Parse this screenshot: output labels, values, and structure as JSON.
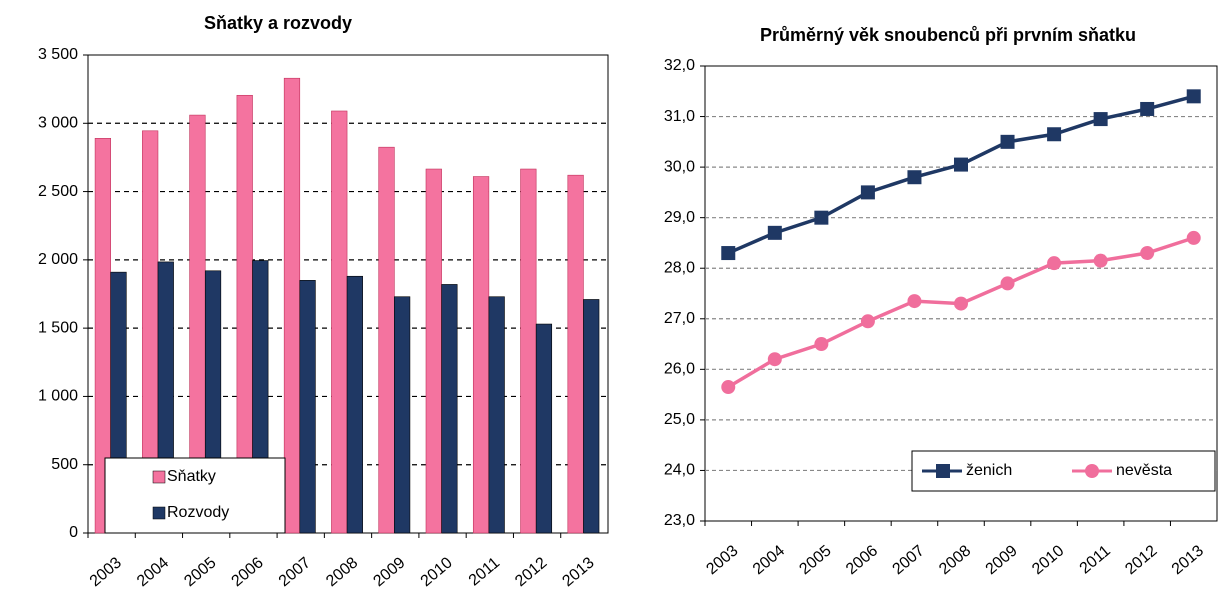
{
  "chart_data": [
    {
      "type": "bar",
      "title": "Sňatky a rozvody",
      "categories": [
        "2003",
        "2004",
        "2005",
        "2006",
        "2007",
        "2008",
        "2009",
        "2010",
        "2011",
        "2012",
        "2013"
      ],
      "series": [
        {
          "name": "Sňatky",
          "color": "#f4739f",
          "values": [
            2890,
            2945,
            3060,
            3205,
            3330,
            3090,
            2825,
            2665,
            2610,
            2665,
            2620
          ]
        },
        {
          "name": "Rozvody",
          "color": "#1f3864",
          "values": [
            1910,
            1985,
            1920,
            1995,
            1850,
            1880,
            1730,
            1820,
            1730,
            1530,
            1710
          ]
        }
      ],
      "ylim": [
        0,
        3500
      ],
      "yticks": [
        0,
        500,
        {
          "value": 1000,
          "label": "1 000"
        },
        {
          "value": 1500,
          "label": "1 500"
        },
        {
          "value": 2000,
          "label": "2 000"
        },
        {
          "value": 2500,
          "label": "2 500"
        },
        {
          "value": 3000,
          "label": "3 000"
        },
        {
          "value": 3500,
          "label": "3 500"
        }
      ],
      "grid": true,
      "legend": "lower left"
    },
    {
      "type": "line",
      "title": "Průměrný věk snoubenců při prvním sňatku",
      "categories": [
        "2003",
        "2004",
        "2005",
        "2006",
        "2007",
        "2008",
        "2009",
        "2010",
        "2011",
        "2012",
        "2013"
      ],
      "series": [
        {
          "name": "ženich",
          "color": "#1f3864",
          "values": [
            28.3,
            28.7,
            29.0,
            29.5,
            29.8,
            30.05,
            30.5,
            30.65,
            30.95,
            31.15,
            31.4
          ]
        },
        {
          "name": "nevěsta",
          "color": "#f06e9c",
          "values": [
            25.65,
            26.2,
            26.5,
            26.95,
            27.35,
            27.3,
            27.7,
            28.1,
            28.15,
            28.3,
            28.6
          ]
        }
      ],
      "ylim": [
        23,
        32
      ],
      "yticks": [
        {
          "value": 23,
          "label": "23,0"
        },
        {
          "value": 24,
          "label": "24,0"
        },
        {
          "value": 25,
          "label": "25,0"
        },
        {
          "value": 26,
          "label": "26,0"
        },
        {
          "value": 27,
          "label": "27,0"
        },
        {
          "value": 28,
          "label": "28,0"
        },
        {
          "value": 29,
          "label": "29,0"
        },
        {
          "value": 30,
          "label": "30,0"
        },
        {
          "value": 31,
          "label": "31,0"
        },
        {
          "value": 32,
          "label": "32,0"
        }
      ],
      "grid": true,
      "legend": "lower right"
    }
  ]
}
